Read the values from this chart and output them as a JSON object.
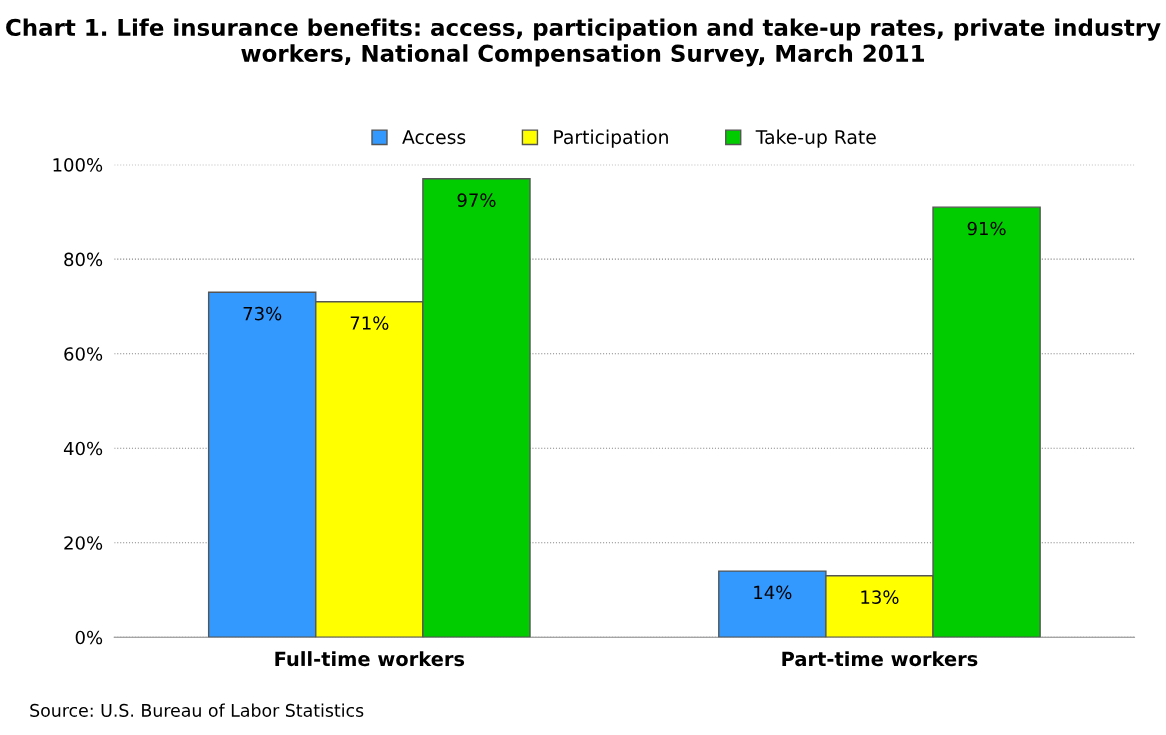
{
  "chart_data": {
    "type": "bar",
    "title": "Chart 1. Life insurance benefits: access, participation and take-up rates, private industry workers, National Compensation Survey, March 2011",
    "categories": [
      "Full-time workers",
      "Part-time workers"
    ],
    "series": [
      {
        "name": "Access",
        "color": "#3399ff",
        "values": [
          73,
          14
        ],
        "value_labels": [
          "73%",
          "14%"
        ]
      },
      {
        "name": "Participation",
        "color": "#ffff00",
        "values": [
          71,
          13
        ],
        "value_labels": [
          "71%",
          "13%"
        ]
      },
      {
        "name": "Take-up Rate",
        "color": "#00cc00",
        "values": [
          97,
          91
        ],
        "value_labels": [
          "97%",
          "91%"
        ]
      }
    ],
    "ylim": [
      0,
      100
    ],
    "yticks": [
      {
        "value": 0,
        "label": "0%"
      },
      {
        "value": 20,
        "label": "20%"
      },
      {
        "value": 40,
        "label": "40%"
      },
      {
        "value": 60,
        "label": "60%"
      },
      {
        "value": 80,
        "label": "80%"
      },
      {
        "value": 100,
        "label": "100%"
      }
    ],
    "grid": "y",
    "legend": "top",
    "annotations": [
      "Source: U.S. Bureau of Labor Statistics"
    ]
  }
}
